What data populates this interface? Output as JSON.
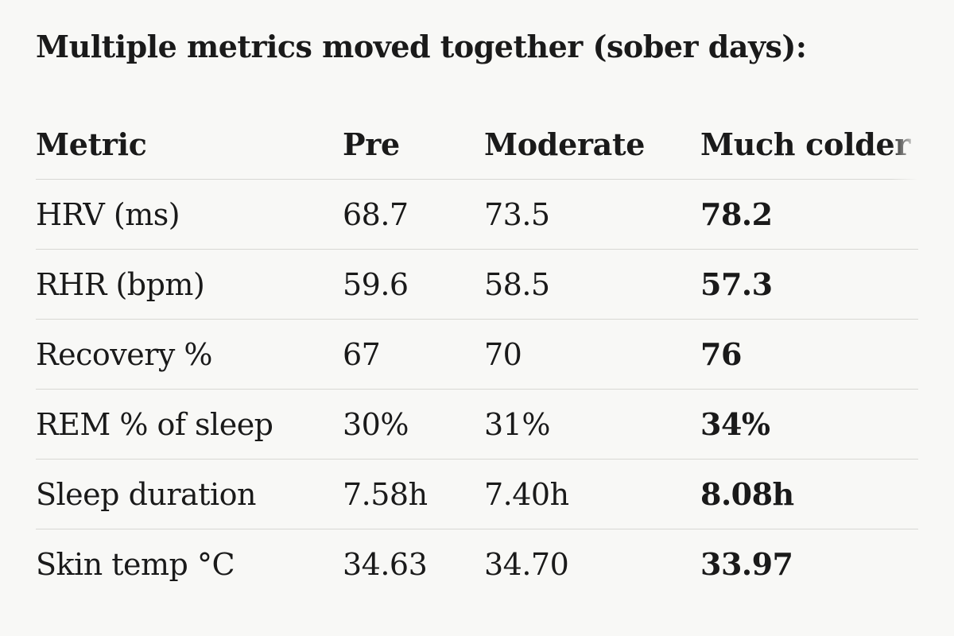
{
  "heading": "Multiple metrics moved together (sober days):",
  "table": {
    "headers": [
      "Metric",
      "Pre",
      "Moderate",
      "Much colder"
    ],
    "rows": [
      [
        "HRV (ms)",
        "68.7",
        "73.5",
        "78.2"
      ],
      [
        "RHR (bpm)",
        "59.6",
        "58.5",
        "57.3"
      ],
      [
        "Recovery %",
        "67",
        "70",
        "76"
      ],
      [
        "REM % of sleep",
        "30%",
        "31%",
        "34%"
      ],
      [
        "Sleep duration",
        "7.58h",
        "7.40h",
        "8.08h"
      ],
      [
        "Skin temp °C",
        "34.63",
        "34.70",
        "33.97"
      ]
    ]
  }
}
